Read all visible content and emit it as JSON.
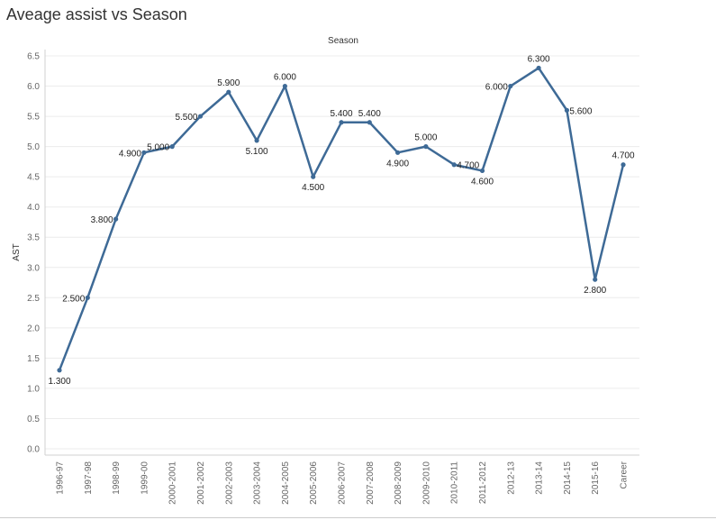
{
  "page_title": "Aveage assist vs Season",
  "chart_data": {
    "type": "line",
    "title": "Season",
    "xlabel": "",
    "ylabel": "AST",
    "ylim": [
      0.0,
      6.5
    ],
    "yticks": [
      "0.0",
      "0.5",
      "1.0",
      "1.5",
      "2.0",
      "2.5",
      "3.0",
      "3.5",
      "4.0",
      "4.5",
      "5.0",
      "5.5",
      "6.0",
      "6.5"
    ],
    "grid": true,
    "line_color": "#3e6a96",
    "categories": [
      "1996-97",
      "1997-98",
      "1998-99",
      "1999-00",
      "2000-2001",
      "2001-2002",
      "2002-2003",
      "2003-2004",
      "2004-2005",
      "2005-2006",
      "2006-2007",
      "2007-2008",
      "2008-2009",
      "2009-2010",
      "2010-2011",
      "2011-2012",
      "2012-13",
      "2013-14",
      "2014-15",
      "2015-16",
      "Career"
    ],
    "values": [
      1.3,
      2.5,
      3.8,
      4.9,
      5.0,
      5.5,
      5.9,
      5.1,
      6.0,
      4.5,
      5.4,
      5.4,
      4.9,
      5.0,
      4.7,
      4.6,
      6.0,
      6.3,
      5.6,
      2.8,
      4.7
    ],
    "data_labels": [
      "1.300",
      "2.500",
      "3.800",
      "4.900",
      "5.000",
      "5.500",
      "5.900",
      "5.100",
      "6.000",
      "4.500",
      "5.400",
      "5.400",
      "4.900",
      "5.000",
      "4.700",
      "4.600",
      "6.000",
      "6.300",
      "5.600",
      "2.800",
      "4.700"
    ]
  }
}
